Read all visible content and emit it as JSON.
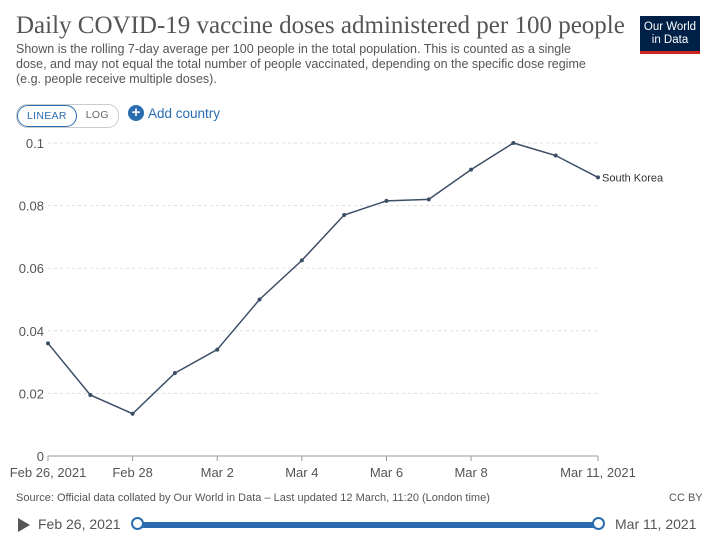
{
  "header": {
    "title": "Daily COVID-19 vaccine doses administered per 100 people",
    "subtitle": "Shown is the rolling 7-day average per 100 people in the total population. This is counted as a single dose, and may not equal the total number of people vaccinated, depending on the specific dose regime (e.g. people receive multiple doses).",
    "logo_line1": "Our World",
    "logo_line2": "in Data"
  },
  "controls": {
    "linear_label": "LINEAR",
    "log_label": "LOG",
    "add_country_label": "Add country"
  },
  "footer": {
    "source": "Source: Official data collated by Our World in Data – Last updated 12 March, 11:20 (London time)",
    "license": "CC BY"
  },
  "timeline": {
    "start_label": "Feb 26, 2021",
    "end_label": "Mar 11, 2021"
  },
  "colors": {
    "series": "#3c4e66",
    "accent": "#2b6cb0"
  },
  "chart_data": {
    "type": "line",
    "title": "Daily COVID-19 vaccine doses administered per 100 people",
    "xlabel": "",
    "ylabel": "",
    "x": [
      "Feb 26",
      "Feb 27",
      "Feb 28",
      "Mar 1",
      "Mar 2",
      "Mar 3",
      "Mar 4",
      "Mar 5",
      "Mar 6",
      "Mar 7",
      "Mar 8",
      "Mar 9",
      "Mar 10",
      "Mar 11"
    ],
    "ylim": [
      0,
      0.1
    ],
    "yticks": [
      0,
      0.02,
      0.04,
      0.06,
      0.08,
      0.1
    ],
    "ytick_labels": [
      "0",
      "0.02",
      "0.04",
      "0.06",
      "0.08",
      "0.1"
    ],
    "xtick_labels": [
      {
        "i": 0,
        "label": "Feb 26, 2021"
      },
      {
        "i": 2,
        "label": "Feb 28"
      },
      {
        "i": 4,
        "label": "Mar 2"
      },
      {
        "i": 6,
        "label": "Mar 4"
      },
      {
        "i": 8,
        "label": "Mar 6"
      },
      {
        "i": 10,
        "label": "Mar 8"
      },
      {
        "i": 13,
        "label": "Mar 11, 2021"
      }
    ],
    "series": [
      {
        "name": "South Korea",
        "values": [
          0.036,
          0.0195,
          0.0135,
          0.0265,
          0.034,
          0.05,
          0.0625,
          0.077,
          0.0815,
          0.082,
          0.0915,
          0.1,
          0.096,
          0.089
        ]
      }
    ],
    "grid": true
  }
}
